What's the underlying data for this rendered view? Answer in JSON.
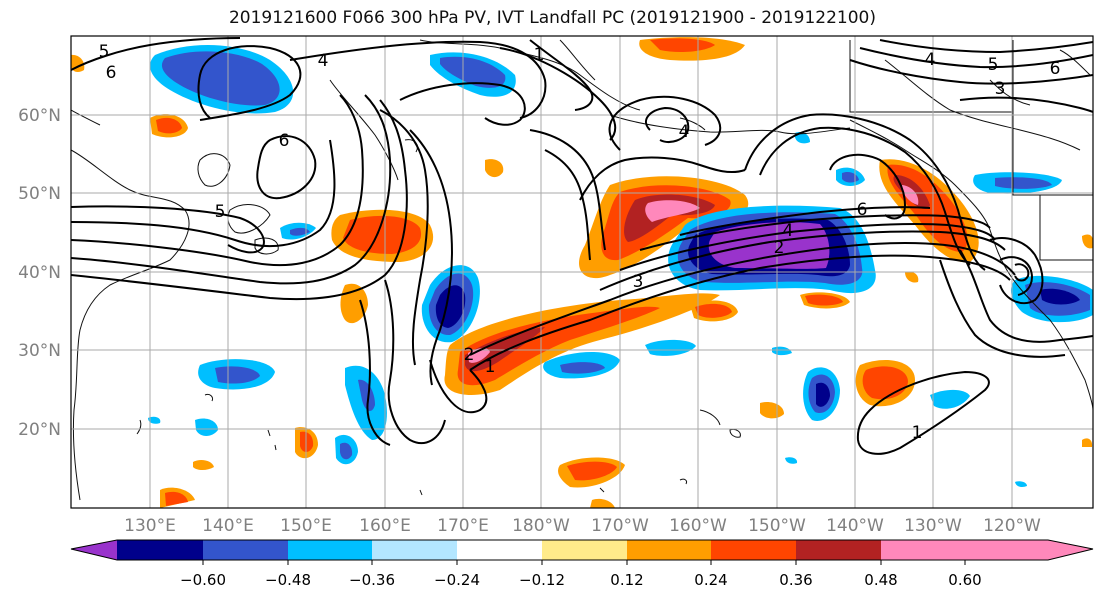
{
  "title": "2019121600 F066 300 hPa PV, IVT Landfall PC (2019121900 - 2019122100)",
  "map": {
    "lon_labels": [
      "130°E",
      "140°E",
      "150°E",
      "160°E",
      "170°E",
      "180°W",
      "170°W",
      "160°W",
      "150°W",
      "140°W",
      "130°W",
      "120°W"
    ],
    "lat_labels": [
      "60°N",
      "50°N",
      "40°N",
      "30°N",
      "20°N"
    ],
    "contour_labels": [
      "5",
      "6",
      "4",
      "1",
      "6",
      "5",
      "4",
      "6",
      "4",
      "2",
      "3",
      "2",
      "1",
      "4",
      "3",
      "5",
      "6",
      "1"
    ],
    "gridlines": true
  },
  "colorbar": {
    "tick_labels": [
      "−0.60",
      "−0.48",
      "−0.36",
      "−0.24",
      "−0.12",
      "0.12",
      "0.24",
      "0.36",
      "0.48",
      "0.60"
    ],
    "colors": [
      "#9933cc",
      "#00008b",
      "#3355cc",
      "#00bfff",
      "#b3e6ff",
      "#ffffff",
      "#ffeb8a",
      "#ff9e00",
      "#ff4500",
      "#b22222",
      "#ff88bb"
    ]
  }
}
